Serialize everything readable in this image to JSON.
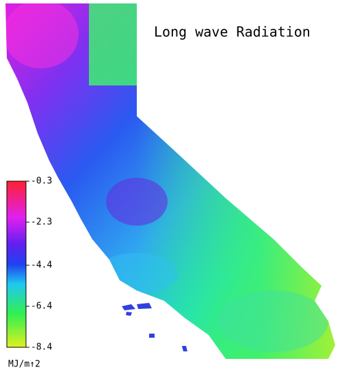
{
  "title": "Long wave Radiation",
  "colorbar": {
    "ticks": [
      -0.3,
      -2.3,
      -4.4,
      -6.4,
      -8.4
    ],
    "unit": "MJ/m↑2"
  }
}
